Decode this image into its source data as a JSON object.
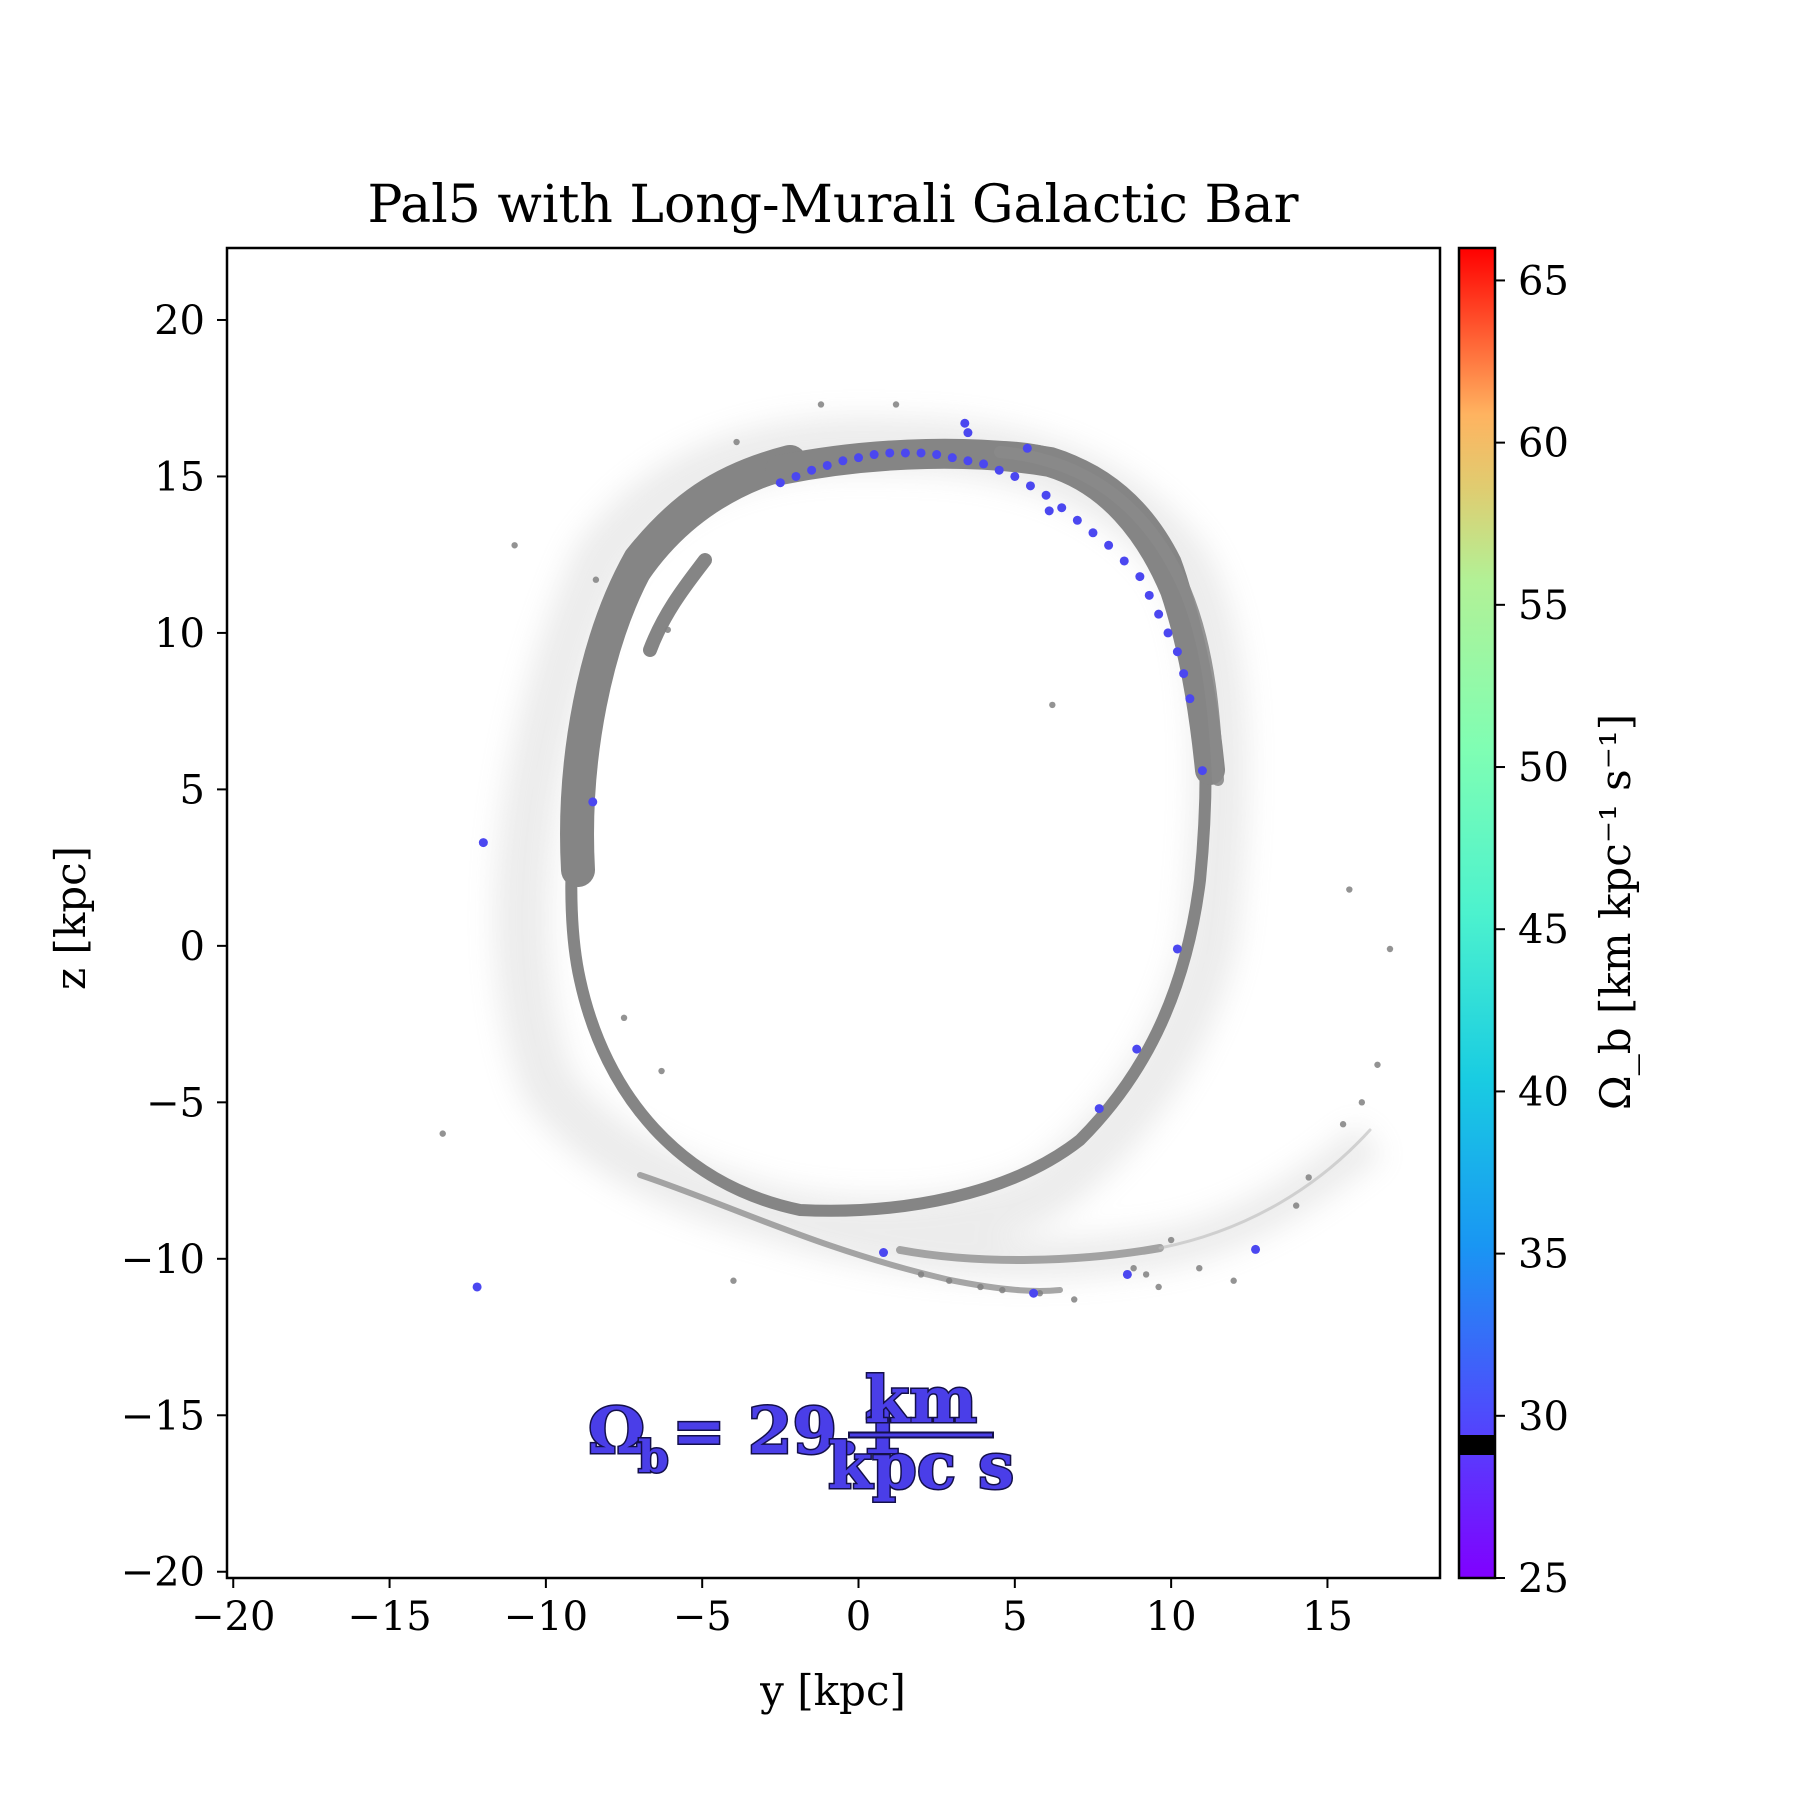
{
  "chart_data": {
    "type": "scatter",
    "title": "Pal5 with Long-Murali Galactic Bar",
    "xlabel": "y [kpc]",
    "ylabel": "z [kpc]",
    "xlim": [
      -20.2,
      18.6
    ],
    "ylim": [
      -20.2,
      22.3
    ],
    "xticks": [
      -20,
      -15,
      -10,
      -5,
      0,
      5,
      10,
      15
    ],
    "yticks": [
      -20,
      -15,
      -10,
      -5,
      0,
      5,
      10,
      15,
      20
    ],
    "xtick_labels": [
      "−20",
      "−15",
      "−10",
      "−5",
      "0",
      "5",
      "10",
      "15"
    ],
    "ytick_labels": [
      "−20",
      "−15",
      "−10",
      "−5",
      "0",
      "5",
      "10",
      "15",
      "20"
    ],
    "grid": false,
    "colors": {
      "stream": "#808080",
      "highlight": "#4b47f0",
      "marker": "#000000"
    },
    "colorbar": {
      "label": "Ω_b [km kpc⁻¹ s⁻¹]",
      "range": [
        25,
        66
      ],
      "ticks": [
        25,
        30,
        35,
        40,
        45,
        50,
        55,
        60,
        65
      ],
      "tick_labels": [
        "25",
        "30",
        "35",
        "40",
        "45",
        "50",
        "55",
        "60",
        "65"
      ],
      "colormap": "rainbow",
      "marked_value": 29.1
    },
    "annotation": {
      "prefix": "Ω",
      "subscript": "b",
      "equals": "= 29.1",
      "numerator": "km",
      "denominator": "kpc s",
      "value": 29.1
    },
    "highlight_points": {
      "x": [
        -2.5,
        -2.0,
        -1.5,
        -1.0,
        -0.5,
        0.0,
        0.5,
        1.0,
        1.5,
        2.0,
        2.5,
        3.0,
        3.5,
        4.0,
        4.5,
        5.0,
        5.5,
        6.0,
        6.5,
        7.0,
        7.5,
        8.0,
        8.5,
        9.0,
        9.3,
        9.6,
        9.9,
        10.2,
        10.4,
        10.6,
        3.4,
        3.5,
        5.4,
        6.1,
        11.0,
        10.2,
        8.9,
        7.7,
        0.8,
        5.6,
        8.6,
        12.7,
        -8.5,
        -12.0,
        -12.2
      ],
      "y": [
        14.8,
        15.0,
        15.2,
        15.35,
        15.5,
        15.6,
        15.7,
        15.75,
        15.75,
        15.75,
        15.7,
        15.6,
        15.5,
        15.4,
        15.2,
        15.0,
        14.7,
        14.4,
        14.0,
        13.6,
        13.2,
        12.8,
        12.3,
        11.8,
        11.2,
        10.6,
        10.0,
        9.4,
        8.7,
        7.9,
        16.7,
        16.4,
        15.9,
        13.9,
        5.6,
        -0.1,
        -3.3,
        -5.2,
        -9.8,
        -11.1,
        -10.5,
        -9.7,
        4.6,
        3.3,
        -10.9
      ]
    },
    "stream_outliers": {
      "x": [
        15.7,
        17.0,
        16.6,
        16.1,
        15.5,
        14.4,
        14.0,
        12.0,
        10.9,
        10.0,
        9.6,
        9.2,
        8.8,
        6.9,
        5.8,
        4.6,
        3.9,
        2.9,
        2.0,
        -4.0,
        -6.3,
        -7.5,
        -13.3,
        -11.0,
        -6.1,
        -8.4,
        -3.9,
        -1.2,
        1.2,
        6.2
      ],
      "y": [
        1.8,
        -0.1,
        -3.8,
        -5.0,
        -5.7,
        -7.4,
        -8.3,
        -10.7,
        -10.3,
        -9.4,
        -10.9,
        -10.5,
        -10.3,
        -11.3,
        -11.1,
        -11.0,
        -10.9,
        -10.7,
        -10.5,
        -10.7,
        -4.0,
        -2.3,
        -6.0,
        12.8,
        10.1,
        11.7,
        16.1,
        17.3,
        17.3,
        7.7
      ]
    }
  }
}
